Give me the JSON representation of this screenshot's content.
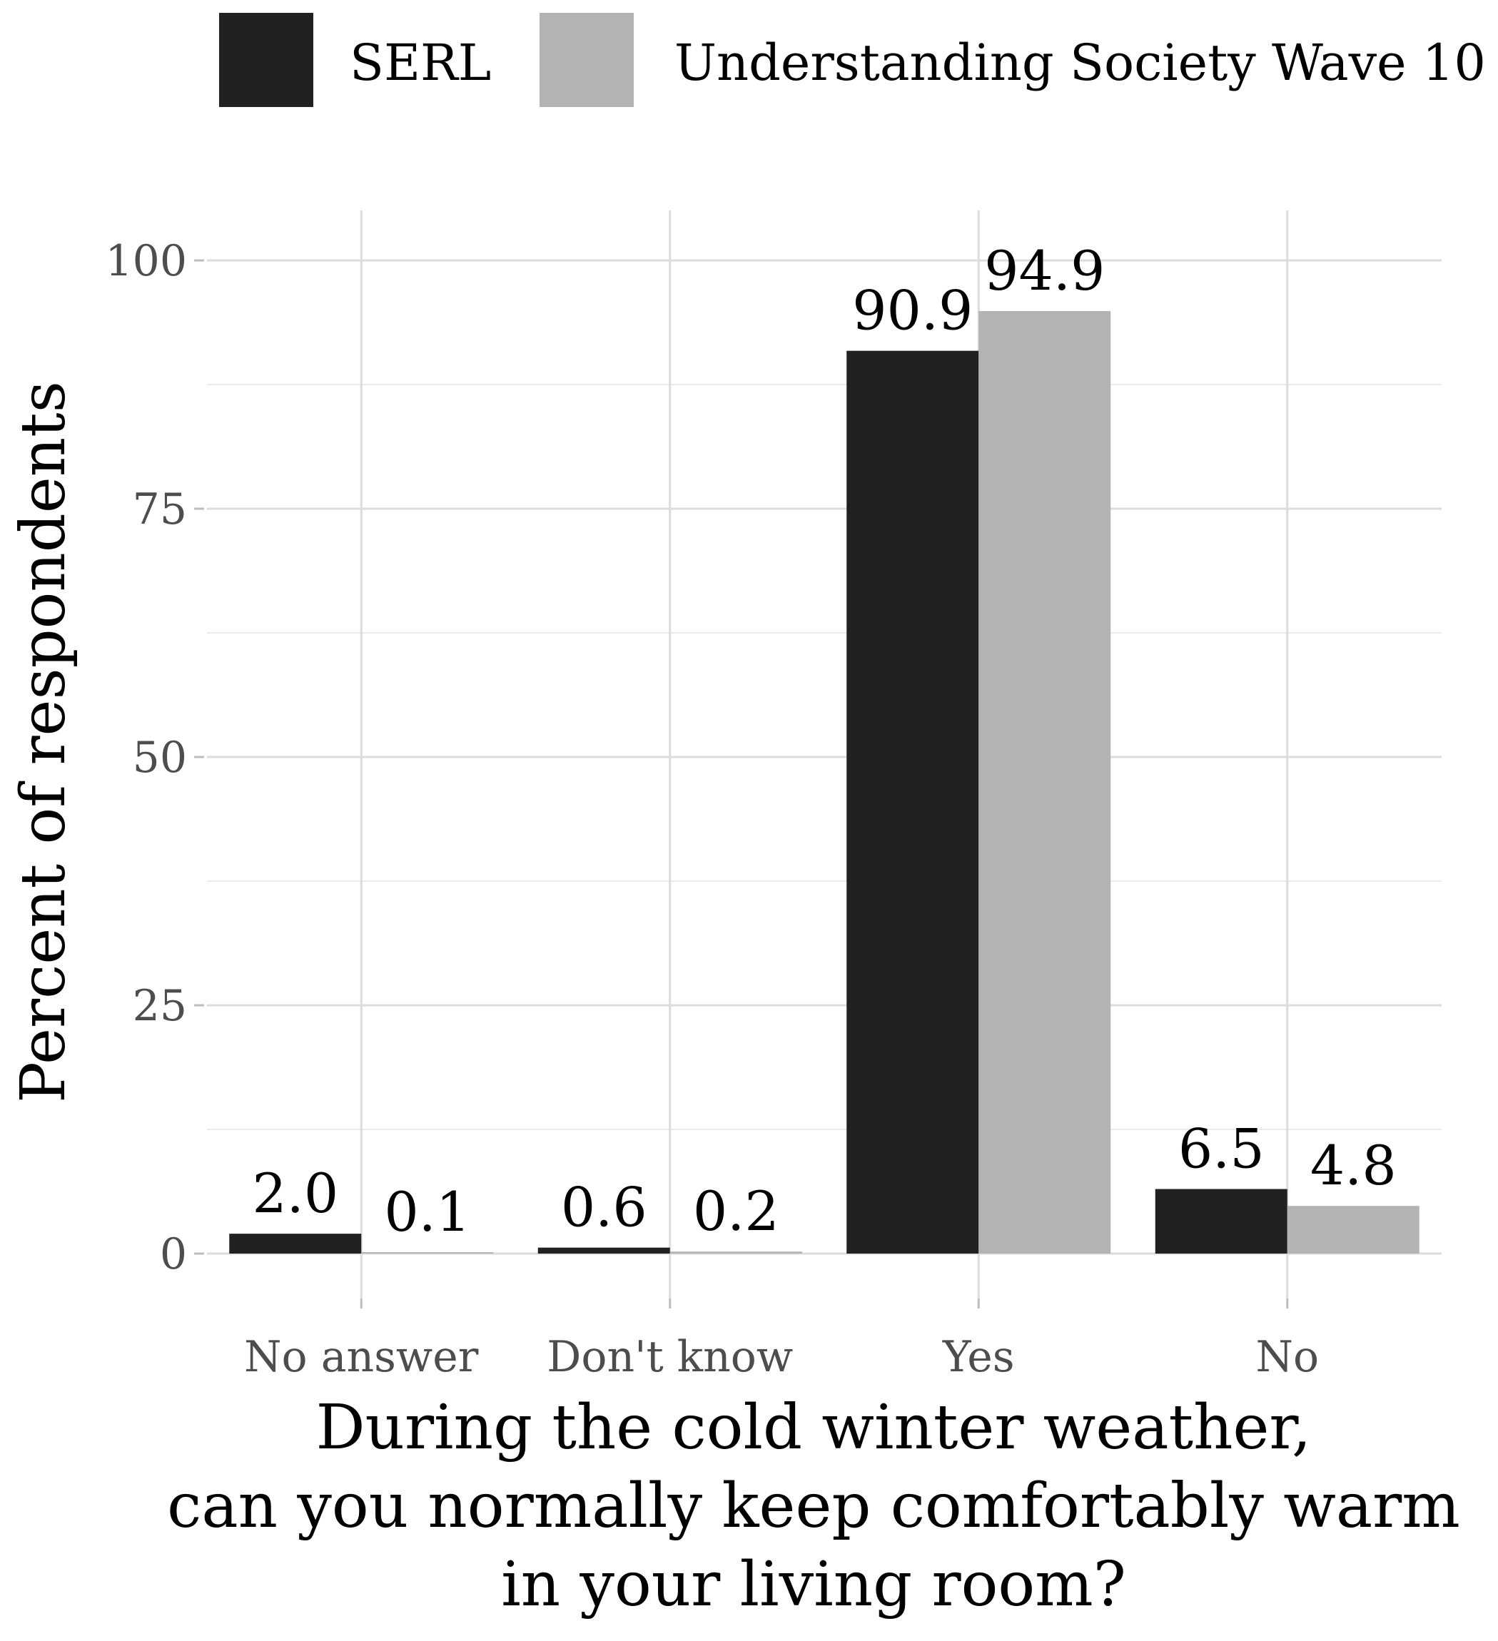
{
  "chart_data": {
    "type": "bar",
    "categories": [
      "No answer",
      "Don't know",
      "Yes",
      "No"
    ],
    "series": [
      {
        "name": "SERL",
        "color": "#212121",
        "values": [
          2.0,
          0.6,
          90.9,
          6.5
        ],
        "labels": [
          "2.0",
          "0.6",
          "90.9",
          "6.5"
        ]
      },
      {
        "name": "Understanding Society Wave 10",
        "color": "#b3b3b3",
        "values": [
          0.1,
          0.2,
          94.9,
          4.8
        ],
        "labels": [
          "0.1",
          "0.2",
          "94.9",
          "4.8"
        ]
      }
    ],
    "ylabel": "Percent of respondents",
    "xlabel_lines": [
      "During the cold winter weather,",
      "can you normally keep comfortably warm",
      "in your living room?"
    ],
    "ylim": [
      -5,
      100
    ],
    "yticks": [
      0,
      25,
      50,
      75,
      100
    ],
    "ytick_labels": [
      "0",
      "25",
      "50",
      "75",
      "100"
    ],
    "legend_position": "top",
    "grid": true
  }
}
